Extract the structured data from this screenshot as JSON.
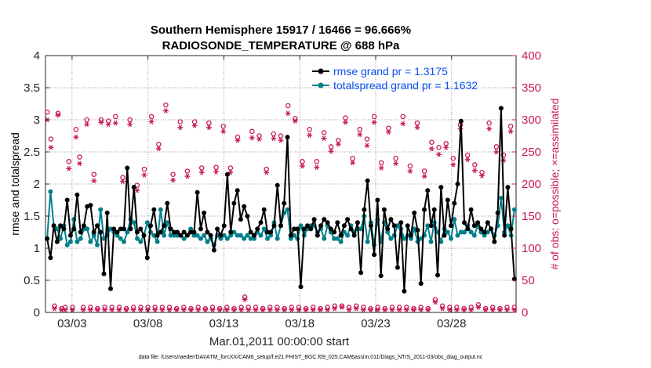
{
  "chart_data": {
    "type": "line",
    "title": "Southern Hemisphere 15917 / 16466 = 96.666%",
    "subtitle": "RADIOSONDE_TEMPERATURE @ 688 hPa",
    "xlabel": "Mar.01,2011 00:00:00 start",
    "ylabel": "rmse and totalspread",
    "y2label": "# of obs: o=possible; ×=assimilated",
    "footnote": "data file: /Users/raeder/DAI/ATM_forcXX/CAM6_setup/f.e21.FHIST_BGC.f09_025.CAM6assim.011/Diags_NTrS_2011-03/obs_diag_output.nc",
    "xlim": [
      1.25,
      32.25
    ],
    "ylim": [
      0,
      4
    ],
    "y2lim": [
      0,
      400
    ],
    "x_ticks": [
      3,
      8,
      13,
      18,
      23,
      28
    ],
    "x_tick_labels": [
      "03/03",
      "03/08",
      "03/13",
      "03/18",
      "03/23",
      "03/28"
    ],
    "y_ticks": [
      "0",
      "0.5",
      "1",
      "1.5",
      "2",
      "2.5",
      "3",
      "3.5",
      "4"
    ],
    "y2_ticks": [
      "0",
      "50",
      "100",
      "150",
      "200",
      "250",
      "300",
      "350",
      "400"
    ],
    "legend_position": "top-right",
    "legend": [
      "rmse grand pr = 1.3175",
      "totalspread grand pr = 1.1632"
    ],
    "colors": {
      "rmse": "#000000",
      "spread": "#00808a",
      "obs": "#c8195a",
      "legend_text": "#0b4ff0"
    },
    "series": [
      {
        "name": "rmse",
        "values": [
          1.15,
          0.85,
          1.35,
          1.1,
          1.35,
          1.3,
          1.75,
          1.2,
          1.3,
          1.83,
          1.25,
          1.35,
          1.65,
          1.67,
          1.25,
          1.35,
          1.25,
          0.6,
          1.55,
          0.37,
          1.3,
          1.25,
          1.3,
          1.3,
          2.25,
          1.3,
          1.95,
          1.25,
          1.3,
          1.2,
          0.85,
          1.35,
          1.6,
          1.2,
          1.25,
          1.35,
          1.7,
          1.3,
          1.25,
          1.25,
          1.2,
          1.25,
          1.2,
          1.25,
          1.25,
          1.87,
          1.3,
          1.55,
          1.25,
          1.2,
          0.97,
          1.3,
          1.2,
          1.35,
          2.15,
          1.25,
          1.7,
          1.9,
          1.45,
          1.65,
          1.5,
          1.25,
          1.2,
          1.3,
          1.4,
          1.6,
          1.25,
          1.25,
          1.35,
          1.98,
          1.35,
          1.7,
          2.73,
          1.2,
          1.3,
          1.3,
          0.4,
          1.3,
          1.35,
          1.3,
          1.45,
          1.2,
          1.35,
          1.45,
          1.4,
          1.3,
          1.25,
          1.4,
          1.2,
          1.35,
          1.45,
          1.3,
          1.2,
          1.4,
          0.62,
          1.6,
          2.05,
          1.35,
          0.9,
          1.75,
          0.57,
          1.6,
          1.3,
          1.45,
          1.35,
          0.7,
          1.4,
          0.33,
          1.35,
          1.2,
          1.55,
          1.28,
          0.45,
          1.6,
          1.9,
          1.35,
          1.6,
          0.58,
          1.95,
          1.2,
          1.75,
          1.35,
          1.7,
          2.0,
          2.98,
          1.4,
          1.3,
          1.6,
          1.35,
          1.4,
          1.3,
          1.25,
          1.4,
          1.3,
          1.1,
          1.55,
          3.18,
          1.2,
          1.95,
          1.3,
          0.52
        ]
      },
      {
        "name": "totalspread",
        "values": [
          1.15,
          1.88,
          1.35,
          1.3,
          1.15,
          1.35,
          1.05,
          1.1,
          1.45,
          1.1,
          1.15,
          1.3,
          1.3,
          1.1,
          1.2,
          1.05,
          1.6,
          1.15,
          1.2,
          1.3,
          1.25,
          1.2,
          1.15,
          1.1,
          1.25,
          1.45,
          1.4,
          1.15,
          1.1,
          1.2,
          1.4,
          1.25,
          1.2,
          1.1,
          1.6,
          1.2,
          1.4,
          1.2,
          1.2,
          1.2,
          1.2,
          1.15,
          1.2,
          1.3,
          1.2,
          1.2,
          1.15,
          1.2,
          1.1,
          1.15,
          1.05,
          1.2,
          1.15,
          1.2,
          1.15,
          1.2,
          1.25,
          1.2,
          1.2,
          1.15,
          1.2,
          1.15,
          1.15,
          1.25,
          1.2,
          1.3,
          1.15,
          1.2,
          1.4,
          1.15,
          1.35,
          1.55,
          1.6,
          1.15,
          1.2,
          1.15,
          1.35,
          1.2,
          1.3,
          1.35,
          1.35,
          1.25,
          1.3,
          1.15,
          1.35,
          1.25,
          1.15,
          1.15,
          1.1,
          1.25,
          1.2,
          1.35,
          1.25,
          1.3,
          1.3,
          1.5,
          1.1,
          1.4,
          1.05,
          1.45,
          1.1,
          1.4,
          1.25,
          1.15,
          1.2,
          1.35,
          1.3,
          1.15,
          1.2,
          1.15,
          1.3,
          1.1,
          1.15,
          1.2,
          1.35,
          1.1,
          1.4,
          1.25,
          1.1,
          1.3,
          1.25,
          1.15,
          1.45,
          1.2,
          1.25,
          1.25,
          1.35,
          1.25,
          1.2,
          1.35,
          1.25,
          1.2,
          1.25,
          1.3,
          1.2,
          1.35,
          1.78,
          1.25,
          1.35,
          1.2,
          1.6
        ]
      },
      {
        "name": "obs_possible",
        "axis": "right",
        "values": [
          312,
          270,
          10,
          310,
          6,
          8,
          235,
          8,
          285,
          242,
          8,
          300,
          8,
          215,
          6,
          300,
          8,
          298,
          8,
          305,
          8,
          210,
          6,
          300,
          8,
          198,
          8,
          223,
          8,
          305,
          8,
          262,
          8,
          323,
          8,
          215,
          6,
          297,
          8,
          220,
          6,
          297,
          8,
          225,
          6,
          295,
          8,
          226,
          6,
          290,
          8,
          225,
          6,
          273,
          8,
          24,
          8,
          282,
          8,
          275,
          6,
          223,
          8,
          278,
          8,
          275,
          6,
          322,
          8,
          302,
          8,
          235,
          6,
          285,
          8,
          235,
          6,
          280,
          8,
          258,
          10,
          268,
          10,
          303,
          8,
          240,
          10,
          285,
          8,
          270,
          6,
          305,
          8,
          233,
          6,
          287,
          8,
          240,
          8,
          305,
          8,
          228,
          6,
          295,
          8,
          220,
          6,
          265,
          20,
          257,
          10,
          263,
          8,
          240,
          8,
          292,
          6,
          245,
          8,
          230,
          12,
          218,
          6,
          295,
          8,
          258,
          6,
          245,
          8,
          290,
          8
        ]
      },
      {
        "name": "obs_assimilated",
        "axis": "right",
        "values": [
          300,
          257,
          6,
          307,
          4,
          4,
          224,
          4,
          273,
          232,
          4,
          293,
          4,
          205,
          4,
          296,
          4,
          293,
          4,
          295,
          4,
          204,
          4,
          293,
          4,
          190,
          4,
          214,
          4,
          297,
          4,
          255,
          4,
          314,
          4,
          206,
          4,
          288,
          4,
          212,
          4,
          291,
          4,
          218,
          4,
          288,
          4,
          219,
          4,
          282,
          4,
          218,
          4,
          268,
          4,
          20,
          4,
          272,
          4,
          270,
          4,
          218,
          4,
          271,
          4,
          268,
          4,
          310,
          4,
          298,
          4,
          228,
          4,
          276,
          4,
          226,
          4,
          271,
          4,
          251,
          6,
          262,
          8,
          296,
          4,
          233,
          6,
          277,
          4,
          260,
          4,
          296,
          4,
          225,
          4,
          281,
          4,
          232,
          4,
          294,
          4,
          220,
          4,
          288,
          4,
          212,
          4,
          255,
          16,
          246,
          6,
          257,
          4,
          230,
          4,
          286,
          4,
          238,
          4,
          221,
          8,
          213,
          4,
          286,
          4,
          250,
          4,
          237,
          4,
          282,
          4
        ]
      }
    ]
  }
}
